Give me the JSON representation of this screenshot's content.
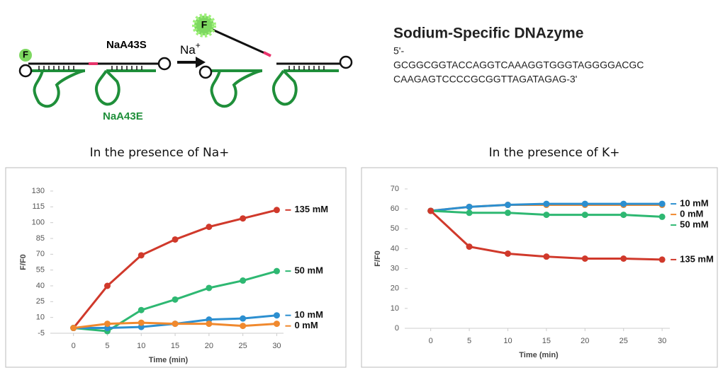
{
  "diagram": {
    "fluorophore": "F",
    "substrate": "NaA43S",
    "enzyme": "NaA43E",
    "ion": {
      "base": "Na",
      "superscript": "+"
    },
    "sequence_title": "Sodium-Specific DNAzyme",
    "sequence": [
      "5'-",
      "GCGGCGGTACCAGGTCAAAGGTGGGTAGGGGACGC",
      "CAAGAGTCCCCGCGGTTAGATAGAG-3'"
    ]
  },
  "chart_data": [
    {
      "type": "line",
      "title": "In the presence of Na+",
      "x_label": "Time (min)",
      "y_label": "F/F0",
      "x": [
        0,
        5,
        10,
        15,
        20,
        25,
        30
      ],
      "xlim": [
        -3,
        31
      ],
      "xticks": [
        0,
        5,
        10,
        15,
        20,
        25,
        30
      ],
      "ylim": [
        -5,
        130
      ],
      "yticks": [
        -5,
        10,
        25,
        40,
        55,
        70,
        85,
        100,
        115,
        130
      ],
      "series": [
        {
          "name": "135 mM",
          "color": "#d0392b",
          "values": [
            0,
            40,
            69,
            84,
            96,
            104,
            112
          ]
        },
        {
          "name": "50 mM",
          "color": "#2eb872",
          "values": [
            0,
            -3,
            17,
            27,
            38,
            45,
            54
          ]
        },
        {
          "name": "10 mM",
          "color": "#2c8fd0",
          "values": [
            0,
            0,
            1,
            4,
            8,
            9,
            12
          ]
        },
        {
          "name": "0 mM",
          "color": "#f0892e",
          "values": [
            0,
            4,
            5,
            4,
            4,
            2,
            4
          ]
        }
      ]
    },
    {
      "type": "line",
      "title": "In the presence of K+",
      "x_label": "Time (min)",
      "y_label": "F/F0",
      "x": [
        0,
        5,
        10,
        15,
        20,
        25,
        30
      ],
      "xlim": [
        -3,
        31
      ],
      "xticks": [
        0,
        5,
        10,
        15,
        20,
        25,
        30
      ],
      "ylim": [
        0,
        70
      ],
      "yticks": [
        0,
        10,
        20,
        30,
        40,
        50,
        60,
        70
      ],
      "series": [
        {
          "name": "0 mM",
          "color": "#f0892e",
          "values": [
            59,
            61,
            62,
            62,
            62,
            62,
            62
          ]
        },
        {
          "name": "10 mM",
          "color": "#2c8fd0",
          "values": [
            59,
            61,
            62,
            62.5,
            62.5,
            62.5,
            62.5
          ]
        },
        {
          "name": "50 mM",
          "color": "#2eb872",
          "values": [
            59,
            58,
            58,
            57,
            57,
            57,
            56
          ]
        },
        {
          "name": "135 mM",
          "color": "#d0392b",
          "values": [
            59,
            41,
            37.5,
            36,
            35,
            35,
            34.5
          ]
        }
      ]
    }
  ]
}
